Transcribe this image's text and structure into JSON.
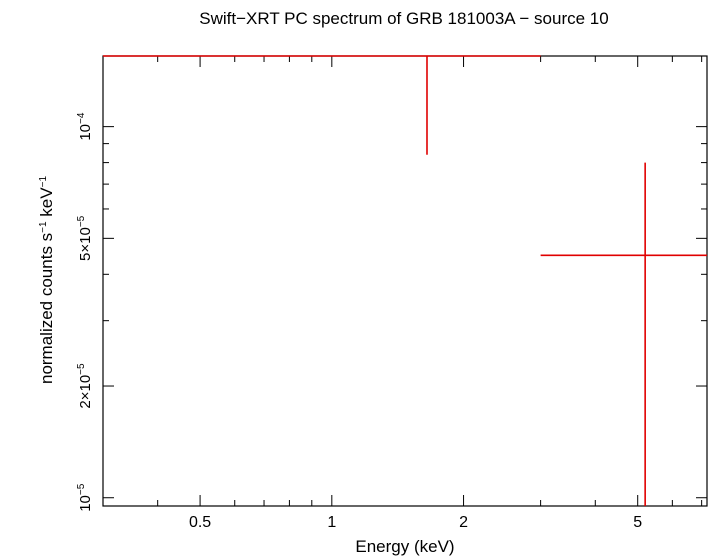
{
  "chart_data": {
    "type": "scatter",
    "title": "Swift−XRT PC spectrum of GRB 181003A − source 10",
    "xlabel": "Energy (keV)",
    "ylabel": {
      "pre": "normalized counts s",
      "sup1": "−1",
      "mid": " keV",
      "sup2": "−1"
    },
    "x_scale": "log",
    "y_scale": "log",
    "xlim": [
      0.3,
      7.2
    ],
    "ylim": [
      9.5e-06,
      0.000155
    ],
    "x_ticks": [
      {
        "value": 0.5,
        "label": "0.5"
      },
      {
        "value": 1,
        "label": "1"
      },
      {
        "value": 2,
        "label": "2"
      },
      {
        "value": 5,
        "label": "5"
      }
    ],
    "y_ticks": [
      {
        "value": 1e-05,
        "mant": "10",
        "exp": "−5"
      },
      {
        "value": 2e-05,
        "mant": "2×10",
        "exp": "−5"
      },
      {
        "value": 5e-05,
        "mant": "5×10",
        "exp": "−5"
      },
      {
        "value": 0.0001,
        "mant": "10",
        "exp": "−4"
      }
    ],
    "series": [
      {
        "color": "#e00000",
        "points": [
          {
            "x": 1.65,
            "xlo": 0.3,
            "xhi": 3.0,
            "y": 0.000155,
            "ylo": 8.4e-05,
            "yhi": 0.000155
          },
          {
            "x": 5.2,
            "xlo": 3.0,
            "xhi": 7.2,
            "y": 4.5e-05,
            "ylo": 9.5e-06,
            "yhi": 8e-05
          }
        ]
      }
    ],
    "grid": false,
    "legend": "none"
  }
}
